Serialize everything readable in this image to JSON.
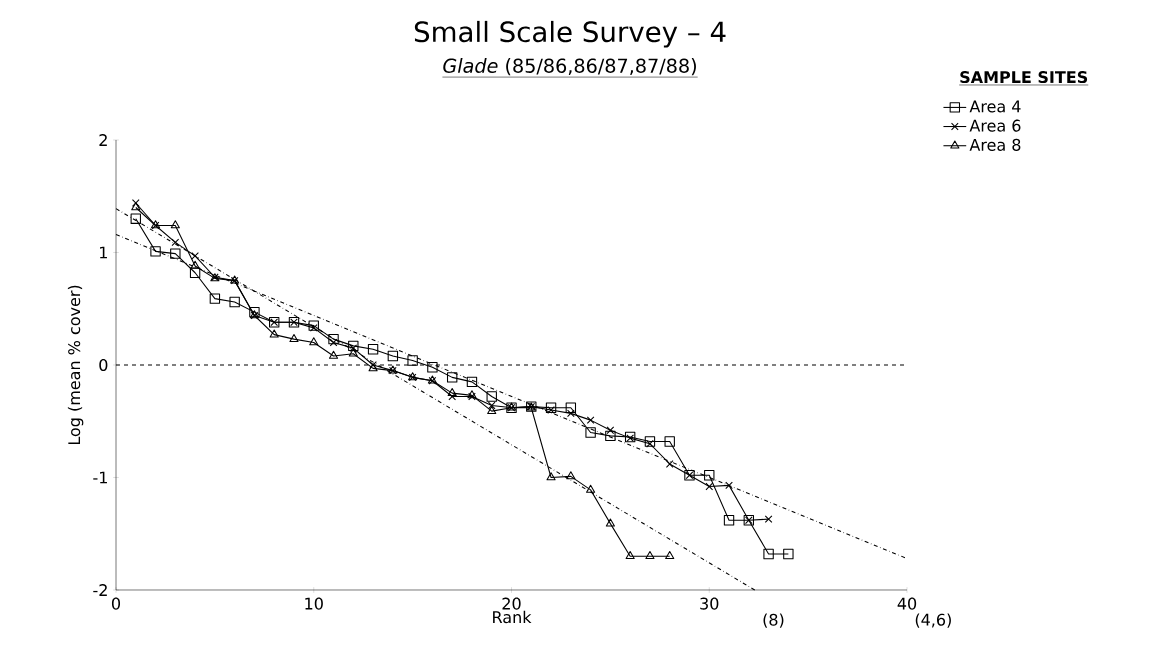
{
  "chart_data": {
    "type": "line",
    "title": "Small Scale Survey – 4",
    "subtitle": "*Glade* (85/86,86/87,87/88)",
    "xlabel": "Rank",
    "ylabel": "Log (mean % cover)",
    "legend_title": "SAMPLE SITES",
    "legend": "top right",
    "xlim": [
      0,
      40
    ],
    "ylim": [
      -2,
      2
    ],
    "xticks": [
      0,
      10,
      20,
      30,
      40
    ],
    "yticks": [
      -2,
      -1,
      0,
      1,
      2
    ],
    "grid": false,
    "series": [
      {
        "name": "Area 4",
        "color": "#000000",
        "marker": "square",
        "x": [
          1,
          2,
          3,
          4,
          5,
          6,
          7,
          8,
          9,
          10,
          11,
          12,
          13,
          14,
          15,
          16,
          17,
          18,
          19,
          20,
          21,
          22,
          23,
          24,
          25,
          26,
          27,
          28,
          29,
          30,
          31,
          32,
          33,
          34
        ],
        "values": [
          1.3,
          1.01,
          0.99,
          0.82,
          0.59,
          0.56,
          0.47,
          0.38,
          0.38,
          0.35,
          0.23,
          0.17,
          0.14,
          0.08,
          0.04,
          -0.02,
          -0.11,
          -0.15,
          -0.28,
          -0.38,
          -0.37,
          -0.38,
          -0.38,
          -0.6,
          -0.63,
          -0.64,
          -0.68,
          -0.68,
          -0.98,
          -0.98,
          -1.38,
          -1.38,
          -1.68,
          -1.68
        ]
      },
      {
        "name": "Area 6",
        "color": "#000000",
        "marker": "cross",
        "x": [
          1,
          2,
          3,
          4,
          5,
          6,
          7,
          8,
          9,
          10,
          11,
          12,
          13,
          14,
          15,
          16,
          17,
          18,
          19,
          20,
          21,
          22,
          23,
          24,
          25,
          26,
          27,
          28,
          29,
          30,
          31,
          32,
          33
        ],
        "values": [
          1.44,
          1.24,
          1.09,
          0.97,
          0.78,
          0.75,
          0.44,
          0.38,
          0.38,
          0.33,
          0.2,
          0.15,
          0.0,
          -0.05,
          -0.11,
          -0.14,
          -0.28,
          -0.28,
          -0.36,
          -0.38,
          -0.37,
          -0.4,
          -0.43,
          -0.49,
          -0.58,
          -0.65,
          -0.7,
          -0.88,
          -0.98,
          -1.08,
          -1.07,
          -1.38,
          -1.37
        ]
      },
      {
        "name": "Area 8",
        "color": "#000000",
        "marker": "triangle",
        "x": [
          1,
          2,
          3,
          4,
          5,
          6,
          7,
          8,
          9,
          10,
          11,
          12,
          13,
          14,
          15,
          16,
          17,
          18,
          19,
          20,
          21,
          22,
          23,
          24,
          25,
          26,
          27,
          28
        ],
        "values": [
          1.4,
          1.24,
          1.24,
          0.88,
          0.77,
          0.75,
          0.44,
          0.27,
          0.23,
          0.2,
          0.08,
          0.1,
          -0.03,
          -0.05,
          -0.11,
          -0.14,
          -0.25,
          -0.27,
          -0.41,
          -0.38,
          -0.38,
          -1.0,
          -0.99,
          -1.11,
          -1.41,
          -1.7,
          -1.7,
          -1.7
        ]
      },
      {
        "type": "line",
        "color": "#000000",
        "marker": "none",
        "line_style": "dashed",
        "x": [
          0,
          40
        ],
        "values": [
          1.16,
          -1.72
        ]
      },
      {
        "type": "line",
        "color": "#000000",
        "marker": "none",
        "line_style": "dashed",
        "x": [
          0,
          32.3
        ],
        "values": [
          1.39,
          -2
        ]
      }
    ],
    "ref_lines": [
      {
        "axis": "y",
        "value": 0,
        "line_style": "dashed"
      }
    ],
    "annotations": [
      "(8)",
      "(4,6)"
    ]
  }
}
